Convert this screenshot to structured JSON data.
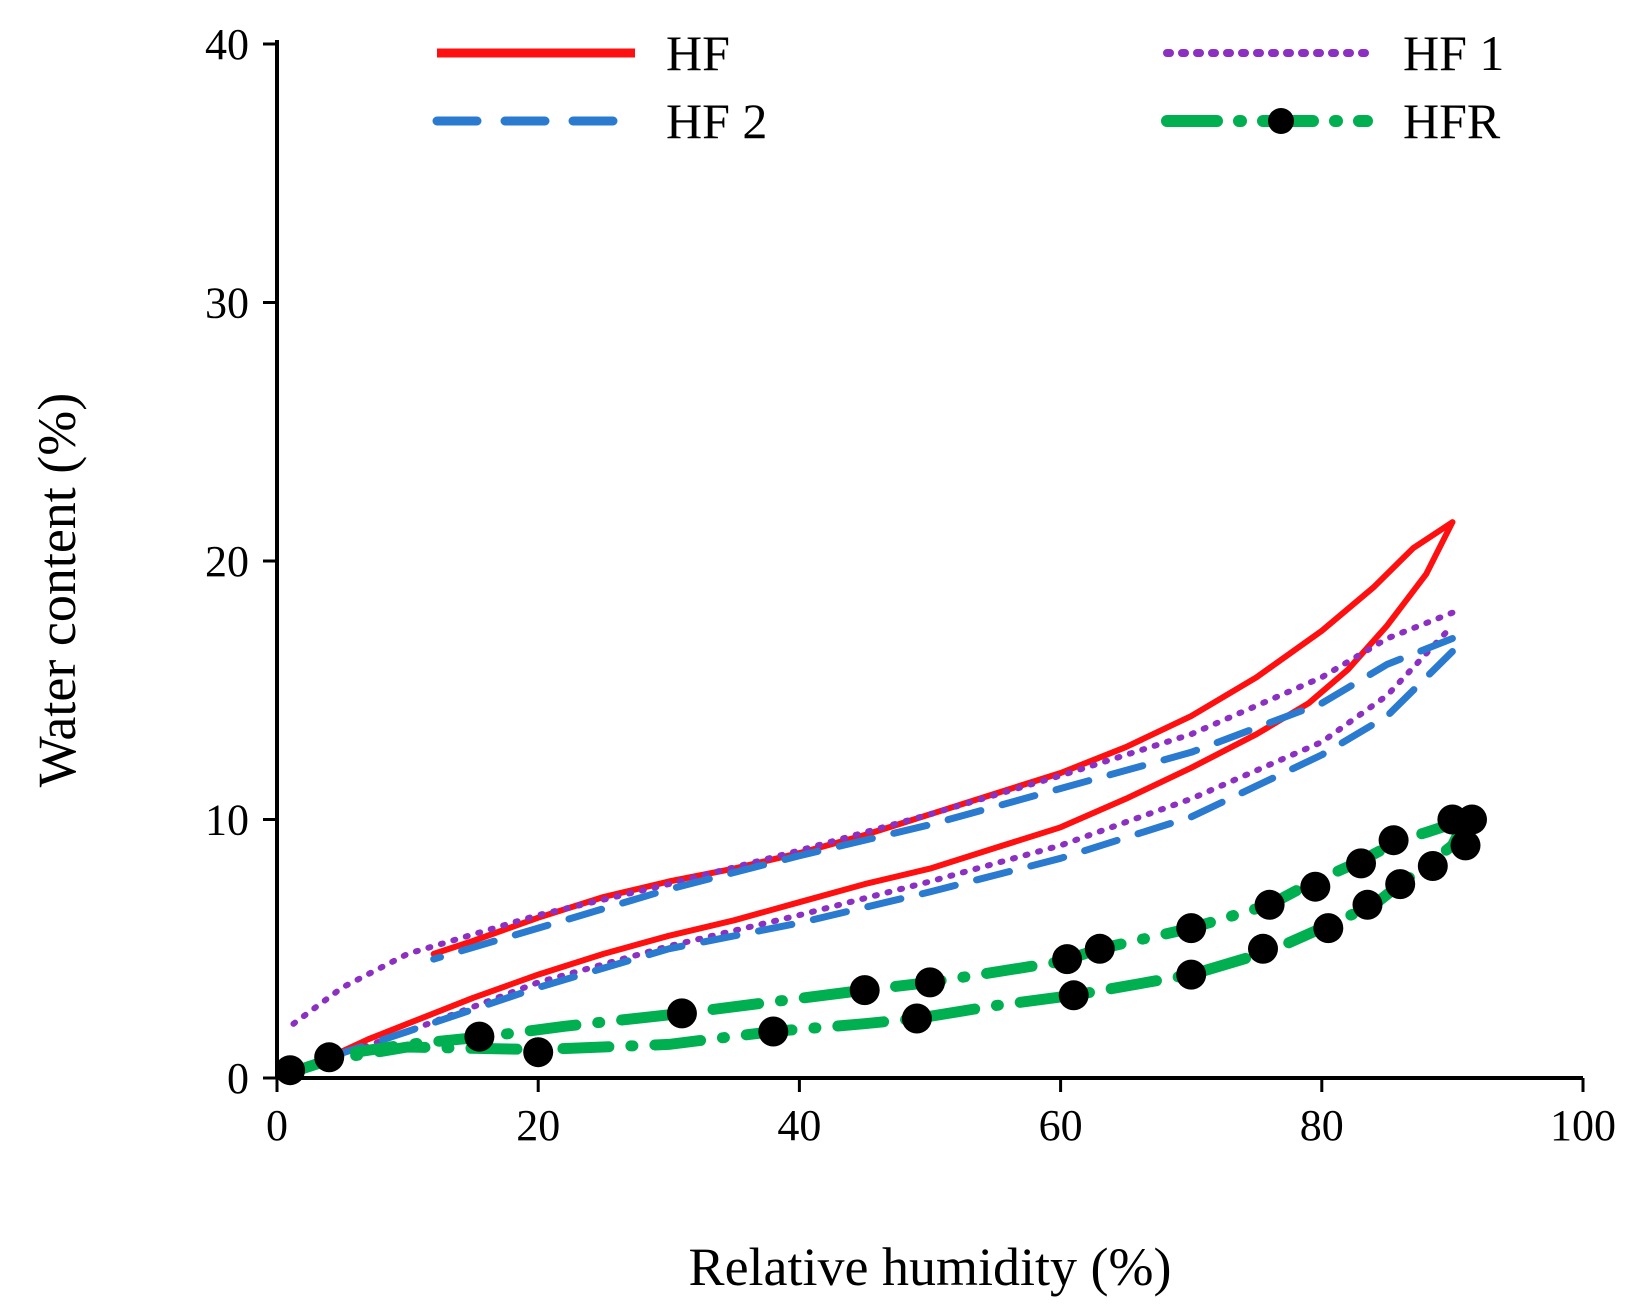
{
  "chart_data": {
    "type": "line",
    "title": "",
    "xlabel": "Relative humidity (%)",
    "ylabel": "Water content (%)",
    "xlim": [
      0,
      100
    ],
    "ylim": [
      0,
      40
    ],
    "x_ticks": [
      "0",
      "20",
      "40",
      "60",
      "80",
      "100"
    ],
    "y_ticks": [
      "0",
      "10",
      "20",
      "30",
      "40"
    ],
    "grid": false,
    "legend": [
      "HF",
      "HF 1",
      "HF 2",
      "HFR"
    ],
    "series": [
      {
        "name": "HF",
        "color": "#ff1010",
        "style": "solid",
        "sorption": [
          [
            1,
            0.3
          ],
          [
            4,
            0.8
          ],
          [
            7,
            1.5
          ],
          [
            10,
            2.1
          ],
          [
            15,
            3.1
          ],
          [
            20,
            4.0
          ],
          [
            25,
            4.8
          ],
          [
            30,
            5.5
          ],
          [
            35,
            6.1
          ],
          [
            40,
            6.8
          ],
          [
            45,
            7.5
          ],
          [
            50,
            8.1
          ],
          [
            55,
            8.9
          ],
          [
            60,
            9.7
          ],
          [
            65,
            10.8
          ],
          [
            70,
            12.0
          ],
          [
            75,
            13.3
          ],
          [
            79,
            14.5
          ],
          [
            82,
            15.8
          ],
          [
            85,
            17.5
          ],
          [
            88,
            19.5
          ],
          [
            90,
            21.5
          ]
        ],
        "desorption": [
          [
            90,
            21.5
          ],
          [
            87,
            20.5
          ],
          [
            84,
            19.0
          ],
          [
            80,
            17.3
          ],
          [
            75,
            15.5
          ],
          [
            70,
            14.0
          ],
          [
            65,
            12.8
          ],
          [
            60,
            11.8
          ],
          [
            55,
            11.0
          ],
          [
            50,
            10.2
          ],
          [
            45,
            9.4
          ],
          [
            40,
            8.7
          ],
          [
            35,
            8.1
          ],
          [
            30,
            7.6
          ],
          [
            25,
            7.0
          ],
          [
            20,
            6.2
          ],
          [
            15,
            5.3
          ],
          [
            12,
            4.8
          ]
        ]
      },
      {
        "name": "HF 1",
        "color": "#8b30c0",
        "style": "dotted",
        "sorption": [
          [
            1,
            0.3
          ],
          [
            5,
            0.9
          ],
          [
            10,
            1.8
          ],
          [
            20,
            3.7
          ],
          [
            30,
            5.1
          ],
          [
            40,
            6.3
          ],
          [
            50,
            7.6
          ],
          [
            60,
            9.0
          ],
          [
            70,
            10.8
          ],
          [
            80,
            13.0
          ],
          [
            85,
            14.8
          ],
          [
            90,
            17.5
          ]
        ],
        "desorption": [
          [
            90,
            18.0
          ],
          [
            85,
            17.0
          ],
          [
            80,
            15.5
          ],
          [
            70,
            13.3
          ],
          [
            60,
            11.7
          ],
          [
            50,
            10.2
          ],
          [
            40,
            8.8
          ],
          [
            30,
            7.5
          ],
          [
            20,
            6.3
          ],
          [
            10,
            4.8
          ],
          [
            5,
            3.5
          ],
          [
            1,
            2.0
          ]
        ]
      },
      {
        "name": "HF 2",
        "color": "#2a7ad0",
        "style": "dashed",
        "sorption": [
          [
            4,
            0.8
          ],
          [
            10,
            1.8
          ],
          [
            20,
            3.5
          ],
          [
            30,
            5.0
          ],
          [
            40,
            6.0
          ],
          [
            50,
            7.2
          ],
          [
            60,
            8.5
          ],
          [
            70,
            10.1
          ],
          [
            80,
            12.5
          ],
          [
            85,
            14.0
          ],
          [
            90,
            16.5
          ]
        ],
        "desorption": [
          [
            90,
            17.0
          ],
          [
            85,
            16.0
          ],
          [
            80,
            14.5
          ],
          [
            70,
            12.6
          ],
          [
            60,
            11.2
          ],
          [
            50,
            9.8
          ],
          [
            40,
            8.6
          ],
          [
            30,
            7.3
          ],
          [
            20,
            5.8
          ],
          [
            12,
            4.6
          ]
        ]
      },
      {
        "name": "HFR",
        "color": "#00b050",
        "style": "long-dash-dot",
        "marker_color": "#000000",
        "sorption": [
          [
            1,
            0.2
          ],
          [
            4,
            0.7
          ],
          [
            10,
            1.2
          ],
          [
            20,
            1.1
          ],
          [
            30,
            1.3
          ],
          [
            38,
            1.8
          ],
          [
            45,
            2.1
          ],
          [
            49,
            2.3
          ],
          [
            55,
            2.8
          ],
          [
            61,
            3.2
          ],
          [
            70,
            4.0
          ],
          [
            76,
            4.9
          ],
          [
            80,
            5.8
          ],
          [
            84,
            6.7
          ],
          [
            86,
            7.5
          ],
          [
            88,
            8.2
          ],
          [
            90,
            9.0
          ],
          [
            91,
            10.0
          ]
        ],
        "desorption": [
          [
            91,
            10.0
          ],
          [
            88,
            9.5
          ],
          [
            86,
            9.2
          ],
          [
            83,
            8.4
          ],
          [
            79,
            7.5
          ],
          [
            76,
            6.7
          ],
          [
            70,
            5.8
          ],
          [
            63,
            5.0
          ],
          [
            60,
            4.5
          ],
          [
            50,
            3.7
          ],
          [
            45,
            3.4
          ],
          [
            31,
            2.5
          ],
          [
            22,
            2.0
          ],
          [
            16,
            1.6
          ],
          [
            10,
            1.3
          ],
          [
            6,
            1.0
          ]
        ],
        "points": [
          [
            1,
            0.3
          ],
          [
            4,
            0.8
          ],
          [
            15.5,
            1.6
          ],
          [
            20,
            1.0
          ],
          [
            31,
            2.5
          ],
          [
            38,
            1.8
          ],
          [
            45,
            3.4
          ],
          [
            49,
            2.3
          ],
          [
            50,
            3.7
          ],
          [
            61,
            3.2
          ],
          [
            60.5,
            4.6
          ],
          [
            63,
            5.0
          ],
          [
            70,
            4.0
          ],
          [
            70,
            5.8
          ],
          [
            75.5,
            5.0
          ],
          [
            76,
            6.7
          ],
          [
            79.5,
            7.4
          ],
          [
            80.5,
            5.8
          ],
          [
            83,
            8.3
          ],
          [
            83.5,
            6.7
          ],
          [
            85.5,
            9.2
          ],
          [
            86,
            7.5
          ],
          [
            88.5,
            8.2
          ],
          [
            90,
            10.0
          ],
          [
            91,
            9.0
          ],
          [
            91.5,
            10.0
          ]
        ]
      }
    ]
  }
}
